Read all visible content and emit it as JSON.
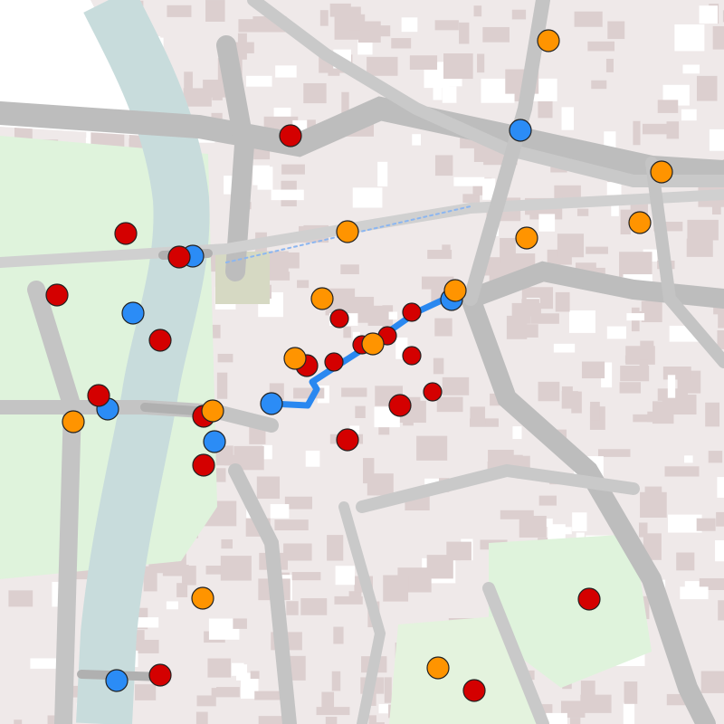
{
  "map": {
    "colors": {
      "background": "#efe9e9",
      "buildings": "#dccfcf",
      "river": "#c8dcdc",
      "park": "#dff3dc",
      "road": "#bdbdbd",
      "minor_road": "#ffffff",
      "route": "#2a88f0"
    },
    "marker_types": {
      "red": {
        "color": "#d40000"
      },
      "orange": {
        "color": "#ff9400"
      },
      "blue": {
        "color": "#2b8cf6"
      }
    },
    "marker_counts": {
      "red": 21,
      "orange": 13,
      "blue": 8
    }
  }
}
